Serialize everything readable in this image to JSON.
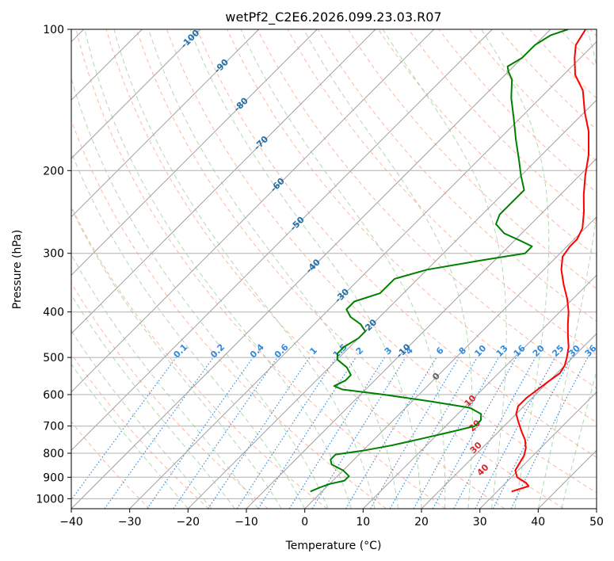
{
  "chart_data": {
    "type": "line",
    "title": "wetPf2_C2E6.2026.099.23.03.R07",
    "xlabel": "Temperature (°C)",
    "ylabel": "Pressure (hPa)",
    "xlim": [
      -40,
      50
    ],
    "ylim": [
      1050,
      100
    ],
    "y_scale": "log",
    "x_ticks": [
      -40,
      -30,
      -20,
      -10,
      0,
      10,
      20,
      30,
      40,
      50
    ],
    "x_tick_labels": [
      "−40",
      "−30",
      "−20",
      "−10",
      "0",
      "10",
      "20",
      "30",
      "40",
      "50"
    ],
    "y_ticks": [
      100,
      200,
      300,
      400,
      500,
      600,
      700,
      800,
      900,
      1000
    ],
    "y_tick_labels": [
      "100",
      "200",
      "300",
      "400",
      "500",
      "600",
      "700",
      "800",
      "900",
      "1000"
    ],
    "grid": true,
    "skew": 45,
    "colors": {
      "temperature": "#ff0000",
      "dewpoint": "#008000",
      "isotherm": "#a0a0a0",
      "dry_adiabat": "#ff9f80",
      "moist_adiabat": "#7fbf7f",
      "mixing_ratio": "#1f7fd9",
      "isotherm_label": "#1f6fa8",
      "moist_label": "#d62728",
      "mixing_label": "#2e8be0"
    },
    "series": [
      {
        "key": "temperature",
        "points": [
          [
            32.5,
            965
          ],
          [
            34.5,
            940
          ],
          [
            33.5,
            925
          ],
          [
            31,
            900
          ],
          [
            29.5,
            870
          ],
          [
            29,
            840
          ],
          [
            28.5,
            810
          ],
          [
            27.5,
            780
          ],
          [
            26,
            750
          ],
          [
            24,
            720
          ],
          [
            22,
            690
          ],
          [
            20,
            660
          ],
          [
            19,
            635
          ],
          [
            19,
            610
          ],
          [
            19.5,
            585
          ],
          [
            20,
            560
          ],
          [
            20.5,
            540
          ],
          [
            20,
            520
          ],
          [
            19,
            500
          ],
          [
            17.5,
            475
          ],
          [
            15.5,
            450
          ],
          [
            13.5,
            425
          ],
          [
            11.5,
            400
          ],
          [
            9,
            375
          ],
          [
            6,
            350
          ],
          [
            3,
            325
          ],
          [
            1,
            305
          ],
          [
            0.5,
            290
          ],
          [
            0.5,
            280
          ],
          [
            -0.5,
            265
          ],
          [
            -3,
            245
          ],
          [
            -6,
            225
          ],
          [
            -9,
            205
          ],
          [
            -12,
            185
          ],
          [
            -16,
            165
          ],
          [
            -20,
            150
          ],
          [
            -24,
            135
          ],
          [
            -28,
            125
          ],
          [
            -31,
            115
          ],
          [
            -33,
            108
          ],
          [
            -34,
            100
          ]
        ]
      },
      {
        "key": "dewpoint",
        "points": [
          [
            -2,
            965
          ],
          [
            -1,
            945
          ],
          [
            0,
            930
          ],
          [
            2,
            915
          ],
          [
            2,
            895
          ],
          [
            0,
            870
          ],
          [
            -3,
            845
          ],
          [
            -4,
            825
          ],
          [
            -4,
            805
          ],
          [
            0,
            790
          ],
          [
            4,
            770
          ],
          [
            8,
            745
          ],
          [
            12,
            720
          ],
          [
            15,
            700
          ],
          [
            15,
            680
          ],
          [
            14,
            660
          ],
          [
            11,
            640
          ],
          [
            3,
            620
          ],
          [
            -6,
            600
          ],
          [
            -14,
            585
          ],
          [
            -16,
            575
          ],
          [
            -15,
            560
          ],
          [
            -15,
            545
          ],
          [
            -17,
            525
          ],
          [
            -20,
            505
          ],
          [
            -21,
            490
          ],
          [
            -21,
            475
          ],
          [
            -20,
            455
          ],
          [
            -20,
            440
          ],
          [
            -22,
            425
          ],
          [
            -25,
            410
          ],
          [
            -27,
            395
          ],
          [
            -27,
            380
          ],
          [
            -24,
            365
          ],
          [
            -24,
            350
          ],
          [
            -24,
            340
          ],
          [
            -20,
            325
          ],
          [
            -12,
            310
          ],
          [
            -6,
            300
          ],
          [
            -6,
            290
          ],
          [
            -9,
            282
          ],
          [
            -13,
            272
          ],
          [
            -16,
            260
          ],
          [
            -17,
            248
          ],
          [
            -17,
            235
          ],
          [
            -17,
            220
          ],
          [
            -20,
            205
          ],
          [
            -23,
            190
          ],
          [
            -27,
            172
          ],
          [
            -31,
            155
          ],
          [
            -35,
            140
          ],
          [
            -38,
            128
          ],
          [
            -40,
            123
          ],
          [
            -41,
            120
          ],
          [
            -40,
            115
          ],
          [
            -40,
            108
          ],
          [
            -39,
            103
          ],
          [
            -37,
            100
          ]
        ]
      }
    ],
    "mixing_ratio_labels": [
      "0.1",
      "0.2",
      "0.4",
      "0.6",
      "1",
      "1.5",
      "2",
      "3",
      "4",
      "6",
      "8",
      "10",
      "13",
      "16",
      "20",
      "25",
      "30",
      "36"
    ],
    "mixing_ratio_values": [
      0.1,
      0.2,
      0.4,
      0.6,
      1,
      1.5,
      2,
      3,
      4,
      6,
      8,
      10,
      13,
      16,
      20,
      25,
      30,
      36
    ],
    "isotherm_label_values": [
      -100,
      -90,
      -80,
      -70,
      -60,
      -50,
      -40,
      -30,
      -20,
      -10,
      0
    ],
    "isotherm_labels": [
      "-100",
      "-90",
      "-80",
      "-70",
      "-60",
      "-50",
      "-40",
      "-30",
      "-20",
      "-10",
      "0"
    ],
    "moist_adiabat_label_values": [
      10,
      20,
      30,
      40
    ],
    "moist_adiabat_labels": [
      "10",
      "20",
      "30",
      "40"
    ]
  }
}
